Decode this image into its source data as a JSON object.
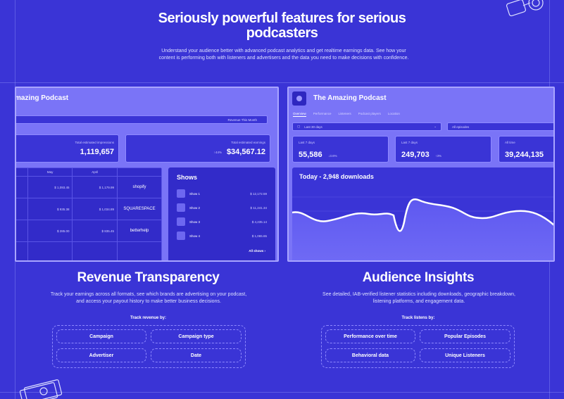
{
  "hero": {
    "title_line1": "Seriously powerful features for serious",
    "title_line2": "podcasters",
    "subtitle": "Understand your audience better with advanced podcast analytics and get realtime earnings data. See how your content is performing both with listeners and advertisers and the data you need to make decisions with confidence."
  },
  "revenue_dash": {
    "title": "mazing Podcast",
    "period": "Revenue This Month",
    "stat1_label": "Total estimated impressions",
    "stat1_value": "1,119,657",
    "stat2_label": "Total estimated earnings",
    "stat2_prefix": "↑44%",
    "stat2_value": "$34,567.12",
    "table_headers": [
      "",
      "May",
      "April",
      ""
    ],
    "rows": [
      {
        "c1": "$ 1,093.45",
        "c2": "$ 1,179.99",
        "brand": "shopify"
      },
      {
        "c1": "$ 935.38",
        "c2": "$ 1,034.89",
        "brand": "SQUARESPACE"
      },
      {
        "c1": "$ 285.00",
        "c2": "$ 835.45",
        "brand": "betterhelp"
      }
    ],
    "shows_title": "Shows",
    "shows": [
      {
        "name": "Show 1",
        "value": "$ 12,172.59"
      },
      {
        "name": "Show 2",
        "value": "$ 11,241.34"
      },
      {
        "name": "Show 3",
        "value": "$ 4,235.14"
      },
      {
        "name": "Show 4",
        "value": "$ 1,065.65"
      }
    ],
    "all_shows": "All shows ›"
  },
  "audience_dash": {
    "title": "The Amazing Podcast",
    "tabs": [
      "Overview",
      "Performance",
      "Listeners",
      "Podcast players",
      "Location"
    ],
    "range_select": "Last 30 days",
    "episode_select": "All episodes",
    "stats": [
      {
        "label": "Last 7 days",
        "value": "55,586",
        "pct": "↓3.6%"
      },
      {
        "label": "Last 7 days",
        "value": "249,703",
        "pct": "↑3%"
      },
      {
        "label": "All time",
        "value": "39,244,135",
        "pct": ""
      }
    ],
    "chart_title": "Today - 2,948 downloads"
  },
  "revenue_section": {
    "title": "Revenue Transparency",
    "desc": "Track your earnings across all formats, see which brands are advertising on your podcast, and access your payout history to make better business decisions.",
    "track_label": "Track revenue by:",
    "pills": [
      "Campaign",
      "Campaign type",
      "Advertiser",
      "Date"
    ]
  },
  "audience_section": {
    "title": "Audience Insights",
    "desc": "See detailed, IAB-verified listener statistics including downloads, geographic breakdown, listening platforms, and engagement data.",
    "track_label": "Track listens by:",
    "pills": [
      "Performance over time",
      "Popular Episodes",
      "Behavioral data",
      "Unique Listeners"
    ]
  }
}
